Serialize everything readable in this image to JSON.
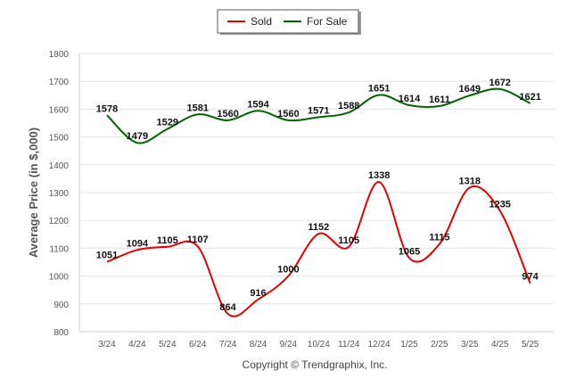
{
  "chart_data": {
    "type": "line",
    "categories": [
      "3/24",
      "4/24",
      "5/24",
      "6/24",
      "7/24",
      "8/24",
      "9/24",
      "10/24",
      "11/24",
      "12/24",
      "1/25",
      "2/25",
      "3/25",
      "4/25",
      "5/25"
    ],
    "series": [
      {
        "name": "Sold",
        "color": "#e60000",
        "values": [
          1051,
          1094,
          1105,
          1107,
          864,
          916,
          1000,
          1152,
          1105,
          1338,
          1065,
          1115,
          1318,
          1235,
          974
        ]
      },
      {
        "name": "For Sale",
        "color": "#006400",
        "values": [
          1578,
          1479,
          1529,
          1581,
          1560,
          1594,
          1560,
          1571,
          1588,
          1651,
          1614,
          1611,
          1649,
          1672,
          1621
        ]
      }
    ],
    "ylabel": "Average Price (in $,000)",
    "xlabel": "",
    "ylim": [
      800,
      1800
    ],
    "yticks": [
      800,
      900,
      1000,
      1100,
      1200,
      1300,
      1400,
      1500,
      1600,
      1700,
      1800
    ],
    "grid": true,
    "legend_position": "top-center"
  },
  "footer": {
    "copyright": "Copyright © Trendgraphix, Inc."
  }
}
